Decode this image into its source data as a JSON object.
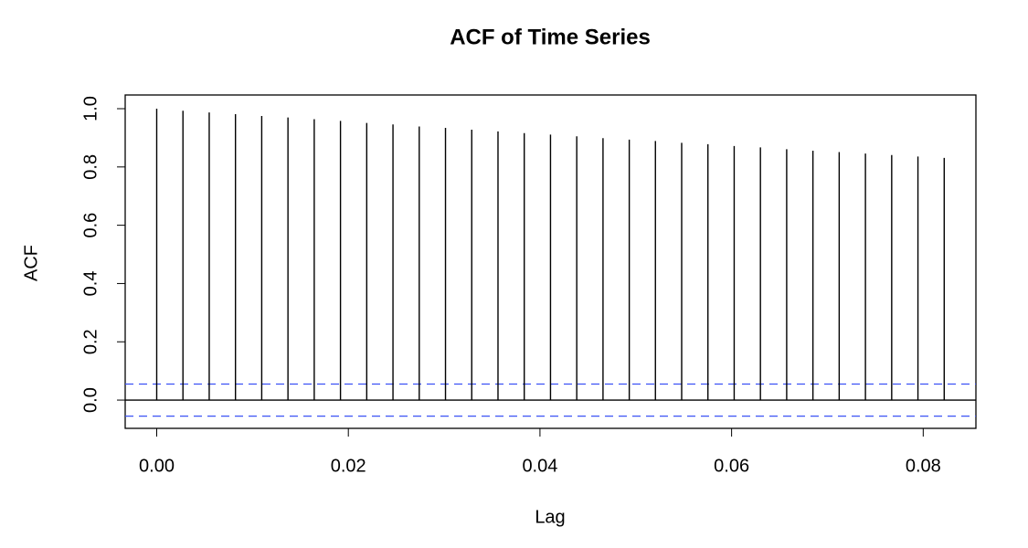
{
  "chart_data": {
    "type": "acf",
    "title": "ACF of Time Series",
    "x_label": "Lag",
    "y_label": "ACF",
    "x": [
      0,
      0.00274,
      0.00548,
      0.00822,
      0.01096,
      0.0137,
      0.01644,
      0.01918,
      0.02192,
      0.02466,
      0.0274,
      0.03014,
      0.03288,
      0.03562,
      0.03836,
      0.0411,
      0.04384,
      0.04658,
      0.04932,
      0.05205,
      0.05479,
      0.05753,
      0.06027,
      0.06301,
      0.06575,
      0.06849,
      0.07123,
      0.07397,
      0.07671,
      0.07945,
      0.08219
    ],
    "values": [
      1.0,
      0.993,
      0.987,
      0.981,
      0.975,
      0.97,
      0.964,
      0.958,
      0.951,
      0.946,
      0.939,
      0.934,
      0.928,
      0.922,
      0.916,
      0.911,
      0.905,
      0.899,
      0.894,
      0.889,
      0.883,
      0.878,
      0.872,
      0.867,
      0.861,
      0.856,
      0.851,
      0.846,
      0.841,
      0.836,
      0.831
    ],
    "color": "#000000",
    "conf_limit": 0.055,
    "conf_color": "#3b52f5",
    "xlim": [
      -0.00329,
      0.0855
    ],
    "ylim": [
      -0.097,
      1.047
    ],
    "xticks": [
      {
        "value": 0,
        "label": "0.00"
      },
      {
        "value": 0.02,
        "label": "0.02"
      },
      {
        "value": 0.04,
        "label": "0.04"
      },
      {
        "value": 0.06,
        "label": "0.06"
      },
      {
        "value": 0.08,
        "label": "0.08"
      }
    ],
    "yticks": [
      {
        "value": 0,
        "label": "0.0"
      },
      0.2,
      0.4,
      0.6,
      0.8,
      {
        "value": 1,
        "label": "1.0"
      }
    ]
  }
}
